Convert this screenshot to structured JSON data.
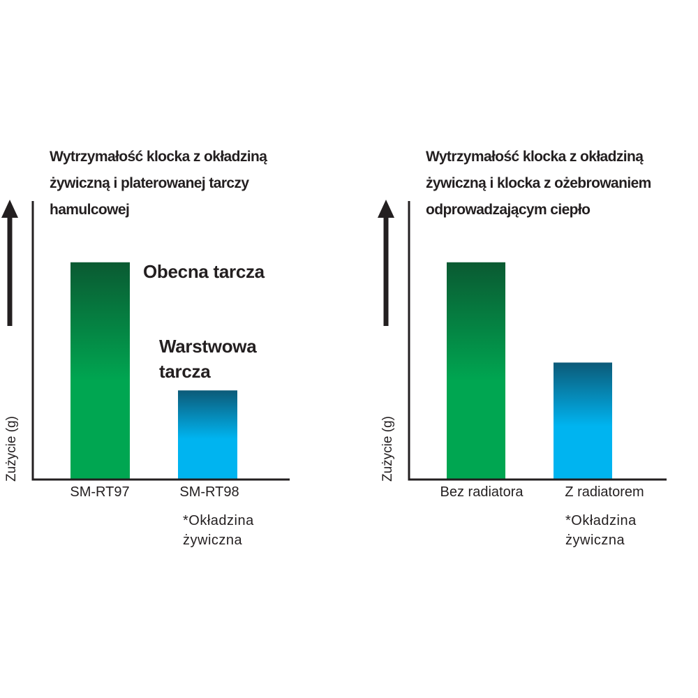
{
  "chart_data": [
    {
      "type": "bar",
      "title": [
        "Wytrzymałość klocka z okładziną",
        "żywiczną i platerowanej tarczy",
        "hamulcowej"
      ],
      "ylabel": "Zużycie (g)",
      "categories": [
        "SM-RT97",
        "SM-RT98"
      ],
      "values": [
        78,
        32
      ],
      "colors": [
        "#00a651",
        "#00b4f0"
      ],
      "gradient_top": [
        "#0a5a32",
        "#0c5a78"
      ],
      "ylim": [
        0,
        100
      ],
      "annotations": [
        "Obecna tarcza",
        "Warstwowa tarcza"
      ],
      "note": [
        "*Okładzina",
        "żywiczna"
      ]
    },
    {
      "type": "bar",
      "title": [
        "Wytrzymałość klocka z okładziną",
        "żywiczną i klocka z ożebrowaniem",
        "odprowadzającym ciepło"
      ],
      "ylabel": "Zużycie (g)",
      "categories": [
        "Bez radiatora",
        "Z radiatorem"
      ],
      "values": [
        78,
        42
      ],
      "colors": [
        "#00a651",
        "#00b4f0"
      ],
      "gradient_top": [
        "#0a5a32",
        "#0c5a78"
      ],
      "ylim": [
        0,
        100
      ],
      "note": [
        "*Okładzina",
        "żywiczna"
      ]
    }
  ]
}
